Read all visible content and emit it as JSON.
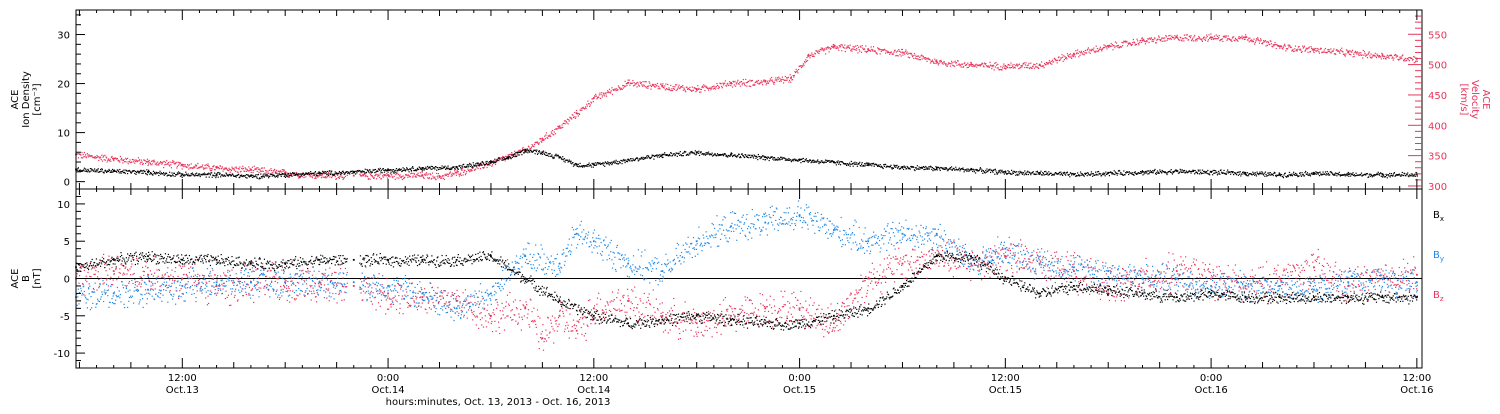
{
  "figure": {
    "xlabel": "hours:minutes, Oct. 13, 2013 - Oct. 16, 2013",
    "time_ticks": [
      {
        "hour": 12,
        "time": "12:00",
        "day": "Oct.13"
      },
      {
        "hour": 24,
        "time": "0:00",
        "day": "Oct.14"
      },
      {
        "hour": 36,
        "time": "12:00",
        "day": "Oct.14"
      },
      {
        "hour": 48,
        "time": "0:00",
        "day": "Oct.15"
      },
      {
        "hour": 60,
        "time": "12:00",
        "day": "Oct.15"
      },
      {
        "hour": 72,
        "time": "0:00",
        "day": "Oct.16"
      },
      {
        "hour": 84,
        "time": "12:00",
        "day": "Oct.16"
      }
    ],
    "xlim_hours": [
      5.8,
      84.3
    ],
    "colors": {
      "black": "#000000",
      "red": "#e8345a",
      "blue": "#1e88e5"
    }
  },
  "chart_data": [
    {
      "type": "scatter",
      "panel": "plasma",
      "left_axis": {
        "label": [
          "ACE",
          "Ion Density",
          "[cm⁻³]"
        ],
        "ylim": [
          -1.5,
          35
        ],
        "ticks": [
          0,
          10,
          20,
          30
        ],
        "color": "#000000"
      },
      "right_axis": {
        "label": [
          "ACE",
          "Velocity",
          "[km/s]"
        ],
        "ylim": [
          295,
          590
        ],
        "ticks": [
          300,
          350,
          400,
          450,
          500,
          550
        ],
        "color": "#e8345a"
      },
      "series": [
        {
          "axis": "left",
          "color": "#000000",
          "scatter": 0.5,
          "x": [
            5.8,
            8,
            10,
            12,
            14,
            16,
            18,
            20,
            22,
            24,
            26,
            28,
            30,
            31,
            32,
            33,
            34,
            35,
            36,
            38,
            40,
            42,
            44,
            46,
            48,
            50,
            52,
            54,
            56,
            58,
            60,
            62,
            64,
            66,
            68,
            70,
            72,
            74,
            76,
            78,
            80,
            82,
            84
          ],
          "y": [
            2.5,
            2.2,
            2,
            1.5,
            1.5,
            1.2,
            1.5,
            1.8,
            2,
            2.5,
            2.8,
            3,
            4,
            5,
            6.5,
            6,
            5,
            3.5,
            3.5,
            4.5,
            5.5,
            6,
            5.5,
            5,
            4.5,
            4,
            3.5,
            3,
            2.8,
            2.5,
            2,
            1.8,
            1.5,
            1.8,
            2,
            2.2,
            2,
            1.8,
            1.5,
            1.8,
            1.5,
            1.5,
            1.5
          ]
        },
        {
          "axis": "right",
          "color": "#e8345a",
          "scatter": 6,
          "x": [
            5.8,
            8,
            10,
            12,
            14,
            16,
            18,
            20,
            22,
            24,
            26,
            27,
            28,
            30,
            32,
            33,
            34,
            35,
            36,
            38,
            40,
            42,
            44,
            46,
            47.5,
            48.5,
            50,
            52,
            54,
            56,
            58,
            60,
            62,
            64,
            66,
            68,
            70,
            72,
            74,
            76,
            78,
            80,
            82,
            84
          ],
          "y": [
            352,
            345,
            340,
            335,
            330,
            327,
            322,
            318,
            317,
            318,
            318,
            316,
            322,
            338,
            360,
            378,
            398,
            420,
            445,
            470,
            465,
            460,
            470,
            472,
            478,
            515,
            530,
            525,
            520,
            505,
            500,
            498,
            500,
            518,
            530,
            540,
            545,
            545,
            545,
            530,
            525,
            520,
            515,
            510
          ]
        }
      ]
    },
    {
      "type": "scatter",
      "panel": "magnetic-field",
      "left_axis": {
        "label": [
          "ACE",
          "B",
          "[nT]"
        ],
        "ylim": [
          -12,
          12
        ],
        "ticks": [
          -10,
          -5,
          0,
          5,
          10
        ],
        "color": "#000000"
      },
      "zero_line": true,
      "series": [
        {
          "name": "Bx",
          "color": "#000000",
          "scatter": 0.8,
          "x": [
            5.8,
            8,
            10,
            12,
            14,
            16,
            18,
            20,
            22,
            24,
            26,
            28,
            30,
            32,
            34,
            36,
            38,
            40,
            42,
            44,
            46,
            48,
            50,
            52,
            54,
            56,
            58,
            60,
            62,
            64,
            66,
            68,
            70,
            72,
            74,
            76,
            78,
            80,
            82,
            84
          ],
          "y": [
            1.5,
            2.5,
            3,
            2.5,
            2.5,
            2,
            2,
            2.5,
            2.5,
            2.5,
            2.5,
            2.5,
            3,
            0,
            -3,
            -5,
            -6,
            -5.5,
            -5,
            -5.5,
            -6,
            -6,
            -5,
            -4,
            -1,
            3,
            3,
            0,
            -2,
            -1,
            -1.5,
            -2,
            -2.5,
            -2,
            -2.5,
            -2.5,
            -2.5,
            -2.5,
            -2.5,
            -2.5
          ]
        },
        {
          "name": "By",
          "color": "#1e88e5",
          "scatter": 2,
          "x": [
            5.8,
            8,
            10,
            12,
            14,
            16,
            18,
            20,
            22,
            24,
            26,
            28,
            30,
            32,
            34,
            35,
            36,
            38,
            40,
            42,
            44,
            46,
            48,
            50,
            52,
            54,
            56,
            58,
            60,
            62,
            64,
            66,
            68,
            70,
            72,
            74,
            76,
            78,
            80,
            82,
            84
          ],
          "y": [
            -2.5,
            -2,
            -1.5,
            -1,
            -0.5,
            -0.5,
            -0.5,
            -0.5,
            -0.5,
            -1,
            -2,
            -4,
            -2,
            3,
            2,
            6,
            5,
            2,
            1,
            5,
            7,
            7.5,
            8.5,
            6.5,
            5,
            6,
            6,
            2,
            4,
            2,
            1.5,
            1,
            0,
            0,
            -1,
            -1,
            -1,
            -1.5,
            -0.5,
            0,
            -0.5
          ]
        },
        {
          "name": "Bz",
          "color": "#e8345a",
          "scatter": 2.5,
          "x": [
            5.8,
            8,
            10,
            12,
            14,
            16,
            18,
            20,
            22,
            24,
            26,
            28,
            30,
            32,
            33,
            34,
            35,
            36,
            38,
            40,
            42,
            44,
            46,
            48,
            50,
            52,
            54,
            56,
            58,
            60,
            62,
            64,
            66,
            68,
            70,
            72,
            74,
            76,
            78,
            80,
            82,
            84
          ],
          "y": [
            0,
            1,
            0.5,
            0,
            -1,
            -0.5,
            -0.5,
            -0.5,
            -1,
            -2,
            -2.5,
            -3,
            -5,
            -4,
            -8,
            -5,
            -7,
            -4,
            -3,
            -5,
            -6,
            -5,
            -4,
            -4,
            -6,
            0,
            2,
            3,
            2,
            3,
            2,
            1,
            -1,
            0,
            1,
            0,
            -1,
            0,
            1.5,
            -1,
            0,
            0.5
          ]
        }
      ],
      "legend": [
        {
          "base": "B",
          "sub": "x",
          "color": "#000000"
        },
        {
          "base": "B",
          "sub": "y",
          "color": "#1e88e5"
        },
        {
          "base": "B",
          "sub": "z",
          "color": "#e8345a"
        }
      ]
    }
  ]
}
